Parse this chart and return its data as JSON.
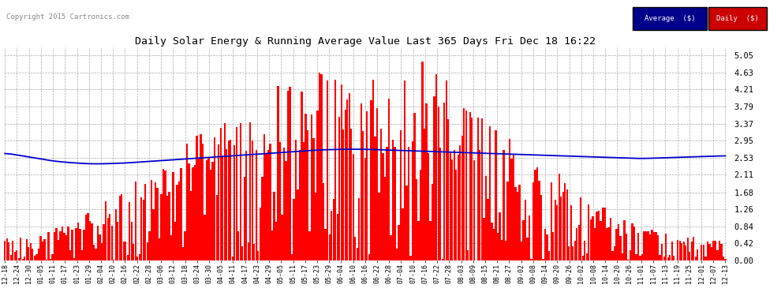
{
  "title": "Daily Solar Energy & Running Average Value Last 365 Days Fri Dec 18 16:22",
  "copyright": "Copyright 2015 Cartronics.com",
  "yticks": [
    0.0,
    0.42,
    0.84,
    1.26,
    1.68,
    2.11,
    2.53,
    2.95,
    3.37,
    3.79,
    4.21,
    4.63,
    5.05
  ],
  "ymax": 5.25,
  "ymin": 0.0,
  "bar_color": "#FF0000",
  "avg_color": "#0000CC",
  "background_color": "#FFFFFF",
  "grid_color": "#AAAAAA",
  "legend_avg_bg": "#00008B",
  "legend_daily_bg": "#CC0000",
  "xtick_labels": [
    "12-18",
    "12-24",
    "12-30",
    "01-05",
    "01-11",
    "01-17",
    "01-23",
    "01-29",
    "02-04",
    "02-10",
    "02-16",
    "02-22",
    "02-28",
    "03-06",
    "03-12",
    "03-18",
    "03-24",
    "03-30",
    "04-05",
    "04-11",
    "04-17",
    "04-23",
    "04-29",
    "05-05",
    "05-11",
    "05-17",
    "05-23",
    "05-29",
    "06-04",
    "06-10",
    "06-16",
    "06-22",
    "06-28",
    "07-04",
    "07-10",
    "07-16",
    "07-22",
    "07-28",
    "08-03",
    "08-09",
    "08-15",
    "08-21",
    "08-27",
    "09-02",
    "09-08",
    "09-14",
    "09-20",
    "09-26",
    "10-02",
    "10-08",
    "10-14",
    "10-20",
    "10-26",
    "11-01",
    "11-07",
    "11-13",
    "11-19",
    "11-25",
    "12-01",
    "12-07",
    "12-13"
  ],
  "n_bars": 365,
  "avg_curve_y": [
    2.65,
    2.6,
    2.55,
    2.5,
    2.45,
    2.42,
    2.4,
    2.38,
    2.38,
    2.39,
    2.4,
    2.42,
    2.44,
    2.46,
    2.48,
    2.5,
    2.52,
    2.54,
    2.56,
    2.58,
    2.6,
    2.62,
    2.64,
    2.66,
    2.68,
    2.7,
    2.72,
    2.73,
    2.74,
    2.74,
    2.74,
    2.73,
    2.72,
    2.71,
    2.7,
    2.69,
    2.68,
    2.67,
    2.66,
    2.65,
    2.64,
    2.63,
    2.62,
    2.61,
    2.6,
    2.59,
    2.58,
    2.57,
    2.56,
    2.55,
    2.54,
    2.53,
    2.52,
    2.51,
    2.52,
    2.53,
    2.54,
    2.55,
    2.56,
    2.57,
    2.58
  ]
}
